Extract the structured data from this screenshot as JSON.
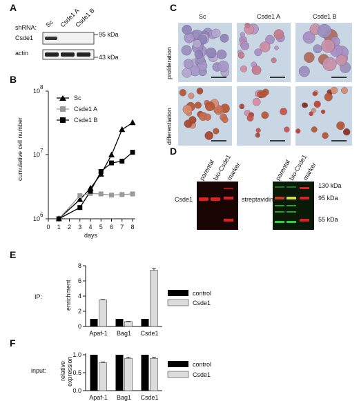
{
  "panels": {
    "A": {
      "label": "A",
      "shrna_label": "shRNA:",
      "lanes": [
        "Sc",
        "Csde1 A",
        "Csde1 B"
      ],
      "rows": [
        "Csde1",
        "actin"
      ],
      "markers": [
        "95 kDa",
        "43 kDa"
      ]
    },
    "B": {
      "label": "B",
      "ylabel": "cumulative cell number",
      "xlabel": "days",
      "yticks": [
        "10",
        "10",
        "10"
      ],
      "yexp": [
        "8",
        "7",
        "6"
      ],
      "xticks": [
        "0",
        "1",
        "2",
        "3",
        "4",
        "5",
        "6",
        "7",
        "8"
      ],
      "legend": [
        "Sc",
        "Csde1 A",
        "Csde1 B"
      ]
    },
    "C": {
      "label": "C",
      "columns": [
        "Sc",
        "Csde1 A",
        "Csde1 B"
      ],
      "rows": [
        "proliferation",
        "differentiation"
      ]
    },
    "D": {
      "label": "D",
      "left_lanes": [
        "parental",
        "bio-Csde1",
        "marker"
      ],
      "right_lanes": [
        "parental",
        "bio-Csde1",
        "marker"
      ],
      "left_row_label": "Csde1",
      "right_row_label": "streptavidin",
      "markers": [
        "130 kDa",
        "95 kDa",
        "55 kDa"
      ]
    },
    "E": {
      "label": "E",
      "side_label": "IP:",
      "ylabel": "enrichment",
      "yticks": [
        "0",
        "2",
        "4",
        "6",
        "8"
      ],
      "categories": [
        "Apaf-1",
        "Bag1",
        "Csde1"
      ],
      "legend": [
        "control",
        "Csde1"
      ]
    },
    "F": {
      "label": "F",
      "side_label": "input:",
      "ylabel_line1": "relative",
      "ylabel_line2": "expression",
      "yticks": [
        "0.0",
        "0.5",
        "1.0"
      ],
      "categories": [
        "Apaf-1",
        "Bag1",
        "Csde1"
      ],
      "legend": [
        "control",
        "Csde1"
      ]
    }
  },
  "colors": {
    "black": "#000000",
    "grey_series": "#9a9a9a",
    "light_bar": "#dcdcdc",
    "blot_bg": "#f2f2f2",
    "fluor_bg": "#1a0505",
    "red_band": "#e02020",
    "green_band": "#30d040",
    "cell_purple": "#9b8fc0",
    "cell_red": "#c96a4a",
    "bg_pale": "#c9d6e3"
  },
  "chart_data": [
    {
      "type": "line",
      "title": "",
      "xlabel": "days",
      "ylabel": "cumulative cell number",
      "yscale": "log",
      "xlim": [
        0,
        8
      ],
      "ylim": [
        1000000,
        100000000
      ],
      "series": [
        {
          "name": "Sc",
          "marker": "triangle",
          "x": [
            1,
            3,
            4,
            5,
            6,
            7,
            8
          ],
          "values": [
            1000000,
            2000000,
            3000000,
            5000000,
            10000000,
            25000000,
            32000000
          ]
        },
        {
          "name": "Csde1 A",
          "marker": "square",
          "x": [
            1,
            3,
            4,
            5,
            6,
            7,
            8
          ],
          "values": [
            1000000,
            2300000,
            2500000,
            2450000,
            2350000,
            2400000,
            2450000
          ]
        },
        {
          "name": "Csde1 B",
          "marker": "square",
          "x": [
            1,
            3,
            4,
            5,
            6,
            7,
            8
          ],
          "values": [
            1000000,
            1500000,
            2700000,
            5500000,
            7500000,
            8000000,
            11000000
          ]
        }
      ]
    },
    {
      "type": "bar",
      "title": "",
      "ylabel": "enrichment",
      "ylim": [
        0,
        8
      ],
      "categories": [
        "Apaf-1",
        "Bag1",
        "Csde1"
      ],
      "series": [
        {
          "name": "control",
          "values": [
            1.0,
            1.0,
            1.0
          ],
          "errors": [
            0,
            0,
            0
          ]
        },
        {
          "name": "Csde1",
          "values": [
            3.5,
            0.65,
            7.4
          ],
          "errors": [
            0.05,
            0.03,
            0.25
          ]
        }
      ]
    },
    {
      "type": "bar",
      "title": "",
      "ylabel": "relative expression",
      "ylim": [
        0,
        1.0
      ],
      "categories": [
        "Apaf-1",
        "Bag1",
        "Csde1"
      ],
      "series": [
        {
          "name": "control",
          "values": [
            1.0,
            1.0,
            1.0
          ],
          "errors": [
            0,
            0,
            0
          ]
        },
        {
          "name": "Csde1",
          "values": [
            0.78,
            0.9,
            0.9
          ],
          "errors": [
            0.02,
            0.03,
            0.03
          ]
        }
      ]
    }
  ]
}
